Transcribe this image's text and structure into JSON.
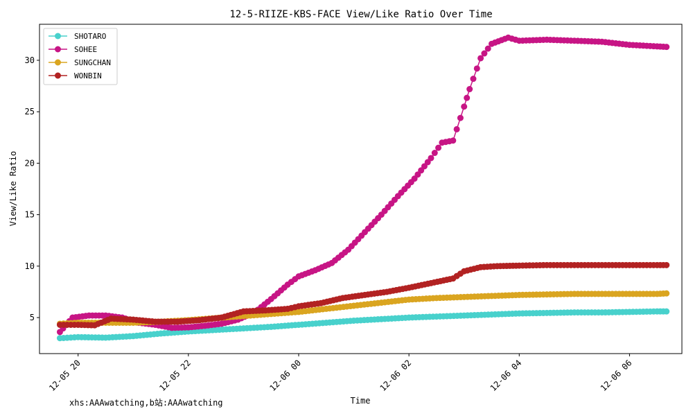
{
  "chart_data": {
    "type": "line",
    "title": "12-5-RIIZE-KBS-FACE View/Like Ratio Over Time",
    "xlabel": "Time",
    "ylabel": "View/Like Ratio",
    "x_ticks": [
      "12-05 20",
      "12-05 22",
      "12-06 00",
      "12-06 02",
      "12-06 04",
      "12-06 06"
    ],
    "y_ticks": [
      "5",
      "10",
      "15",
      "20",
      "25",
      "30"
    ],
    "xlim_hours": [
      19.3,
      30.95
    ],
    "ylim": [
      1.5,
      33.5
    ],
    "grid": false,
    "legend_position": "top-left",
    "series": [
      {
        "name": "SHOTARO",
        "color": "#48D1CC",
        "hours": [
          19.67,
          20.0,
          20.5,
          21.0,
          21.5,
          22.0,
          22.5,
          23.0,
          23.5,
          24.0,
          24.5,
          25.0,
          25.5,
          26.0,
          26.5,
          27.0,
          27.5,
          28.0,
          28.5,
          29.0,
          29.5,
          30.0,
          30.5,
          30.67
        ],
        "values": [
          3.0,
          3.1,
          3.05,
          3.2,
          3.45,
          3.65,
          3.8,
          3.95,
          4.1,
          4.3,
          4.5,
          4.7,
          4.85,
          5.0,
          5.1,
          5.2,
          5.3,
          5.4,
          5.45,
          5.5,
          5.5,
          5.55,
          5.6,
          5.6
        ]
      },
      {
        "name": "SOHEE",
        "color": "#C71585",
        "hours": [
          19.67,
          19.9,
          20.2,
          20.5,
          20.8,
          21.1,
          21.4,
          21.7,
          22.0,
          22.3,
          22.6,
          22.9,
          23.2,
          23.5,
          23.8,
          24.0,
          24.3,
          24.6,
          24.9,
          25.2,
          25.5,
          25.8,
          26.1,
          26.4,
          26.6,
          26.8,
          27.0,
          27.1,
          27.3,
          27.5,
          27.8,
          28.0,
          28.5,
          29.0,
          29.5,
          30.0,
          30.5,
          30.67
        ],
        "values": [
          3.6,
          5.0,
          5.2,
          5.2,
          5.0,
          4.5,
          4.3,
          4.0,
          4.05,
          4.2,
          4.4,
          4.8,
          5.5,
          6.8,
          8.2,
          9.0,
          9.6,
          10.3,
          11.6,
          13.3,
          15.0,
          16.8,
          18.5,
          20.5,
          22.0,
          22.2,
          25.5,
          27.2,
          30.2,
          31.6,
          32.2,
          31.9,
          32.0,
          31.9,
          31.8,
          31.5,
          31.35,
          31.3
        ]
      },
      {
        "name": "SUNGCHAN",
        "color": "#DAA520",
        "hours": [
          19.67,
          20.0,
          20.5,
          21.0,
          21.5,
          22.0,
          22.5,
          23.0,
          23.5,
          24.0,
          24.5,
          25.0,
          25.5,
          26.0,
          26.5,
          27.0,
          27.5,
          28.0,
          28.5,
          29.0,
          29.5,
          30.0,
          30.5,
          30.67
        ],
        "values": [
          4.4,
          4.5,
          4.5,
          4.5,
          4.6,
          4.75,
          4.95,
          5.15,
          5.35,
          5.55,
          5.85,
          6.15,
          6.45,
          6.75,
          6.9,
          7.0,
          7.1,
          7.2,
          7.25,
          7.3,
          7.3,
          7.3,
          7.3,
          7.35
        ]
      },
      {
        "name": "WONBIN",
        "color": "#B22222",
        "hours": [
          19.67,
          20.0,
          20.3,
          20.6,
          21.0,
          21.4,
          21.8,
          22.2,
          22.6,
          23.0,
          23.4,
          23.8,
          24.0,
          24.4,
          24.8,
          25.2,
          25.6,
          26.0,
          26.4,
          26.8,
          27.0,
          27.3,
          27.6,
          28.0,
          28.5,
          29.0,
          29.5,
          30.0,
          30.5,
          30.67
        ],
        "values": [
          4.3,
          4.3,
          4.25,
          4.9,
          4.8,
          4.6,
          4.6,
          4.75,
          5.0,
          5.6,
          5.7,
          5.85,
          6.1,
          6.4,
          6.9,
          7.2,
          7.5,
          7.9,
          8.35,
          8.8,
          9.5,
          9.9,
          10.0,
          10.05,
          10.1,
          10.1,
          10.1,
          10.1,
          10.1,
          10.1
        ]
      }
    ]
  },
  "watermark": "xhs:AAAwatching,b站:AAAwatching"
}
